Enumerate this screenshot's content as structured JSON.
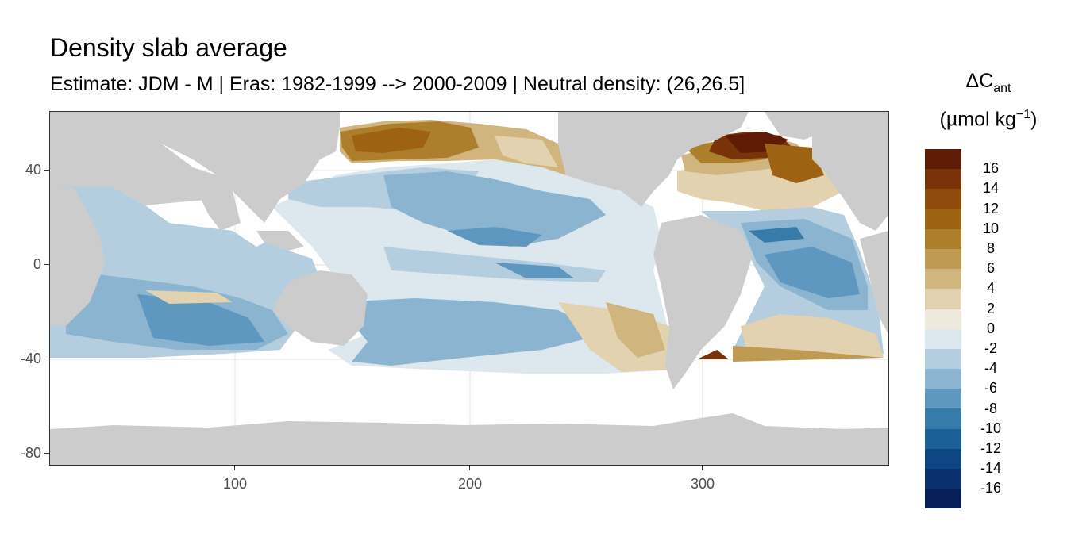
{
  "title": "Density slab average",
  "subtitle": "Estimate: JDM - M | Eras: 1982-1999 --> 2000-2009 | Neutral density: (26,26.5]",
  "axes": {
    "x_ticks": [
      "100",
      "200",
      "300"
    ],
    "y_ticks": [
      "40",
      "0",
      "-40",
      "-80"
    ]
  },
  "legend": {
    "title_line1": "ΔC",
    "title_sub": "ant",
    "title_line2_pre": "(µmol kg",
    "title_sup": "−1",
    "title_line2_post": ")",
    "labels": [
      "16",
      "14",
      "12",
      "10",
      "8",
      "6",
      "4",
      "2",
      "0",
      "-2",
      "-4",
      "-6",
      "-8",
      "-10",
      "-12",
      "-14",
      "-16"
    ],
    "colors": [
      "#5e1b05",
      "#7a3308",
      "#8e4a0b",
      "#9d6313",
      "#ad7f2c",
      "#bf9a53",
      "#d0b57f",
      "#e3d2b0",
      "#efe8dc",
      "#dde8ee",
      "#b4cedf",
      "#8ab4d0",
      "#5e97bf",
      "#377bab",
      "#1a5f96",
      "#0d4683",
      "#0a316e",
      "#071f58"
    ]
  },
  "colors": {
    "land": "#cccccc",
    "ocean_no_data": "#ffffff",
    "grid": "#ebebeb"
  }
}
